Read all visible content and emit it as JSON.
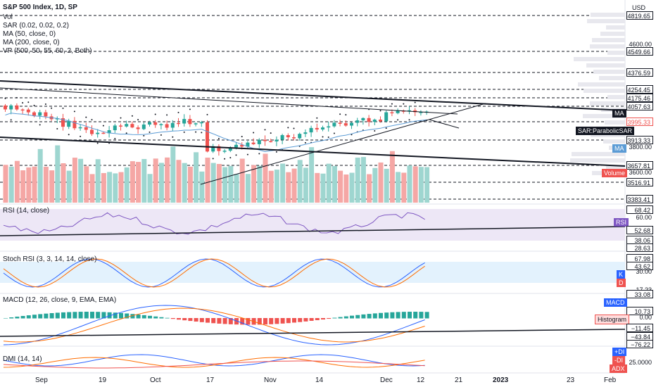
{
  "header": {
    "symbol": "S&P 500 Index, 1D, SP",
    "currency": "USD",
    "indicators": [
      "Vol",
      "SAR (0.02, 0.02, 0.2)",
      "MA (50, close, 0)",
      "MA (200, close, 0)",
      "VP (500, 50, 55, 60, 2, Both)"
    ]
  },
  "price_axis": {
    "plain_labels": [
      "4600.00",
      "3800.00",
      "3600.00"
    ],
    "level_boxes": [
      "4819.65",
      "4549.66",
      "4376.59",
      "4254.45",
      "4175.46",
      "4057.63",
      "3913.33",
      "3657.81",
      "3516.91",
      "3383.41"
    ],
    "last_price": "3995.33",
    "tags": {
      "ma": "MA",
      "sar": "SAR:ParabolicSAR",
      "ma2": "MA",
      "volume": "Volume"
    }
  },
  "rsi": {
    "title": "RSI (14, close)",
    "levels": [
      "68.42",
      "60.00",
      "52.68",
      "38.06",
      "28.63"
    ],
    "tag": "RSI"
  },
  "stoch": {
    "title": "Stoch RSI (3, 3, 14, 14, close)",
    "levels": [
      "67.98",
      "43.62",
      "30.00",
      "17.23"
    ],
    "tags": [
      "K",
      "D"
    ]
  },
  "macd": {
    "title": "MACD (12, 26, close, 9, EMA, EMA)",
    "levels": [
      "33.08",
      "10.73",
      "0.00",
      "−11.45",
      "−43.84",
      "−76.22"
    ],
    "tags": [
      "MACD",
      "Histogram"
    ]
  },
  "dmi": {
    "title": "DMI (14, 14)",
    "level": "25.0000",
    "tags": [
      "+DI",
      "-DI",
      "ADX"
    ]
  },
  "time_axis": [
    "Sep",
    "19",
    "Oct",
    "17",
    "Nov",
    "14",
    "Dec",
    "12",
    "21",
    "2023",
    "23",
    "Feb"
  ],
  "colors": {
    "up": "#26a69a",
    "down": "#ef5350",
    "sar": "#131722",
    "ma": "#5b9bd5",
    "rsi": "#7e57c2",
    "macd": "#2962ff",
    "signal": "#ff6d00"
  }
}
